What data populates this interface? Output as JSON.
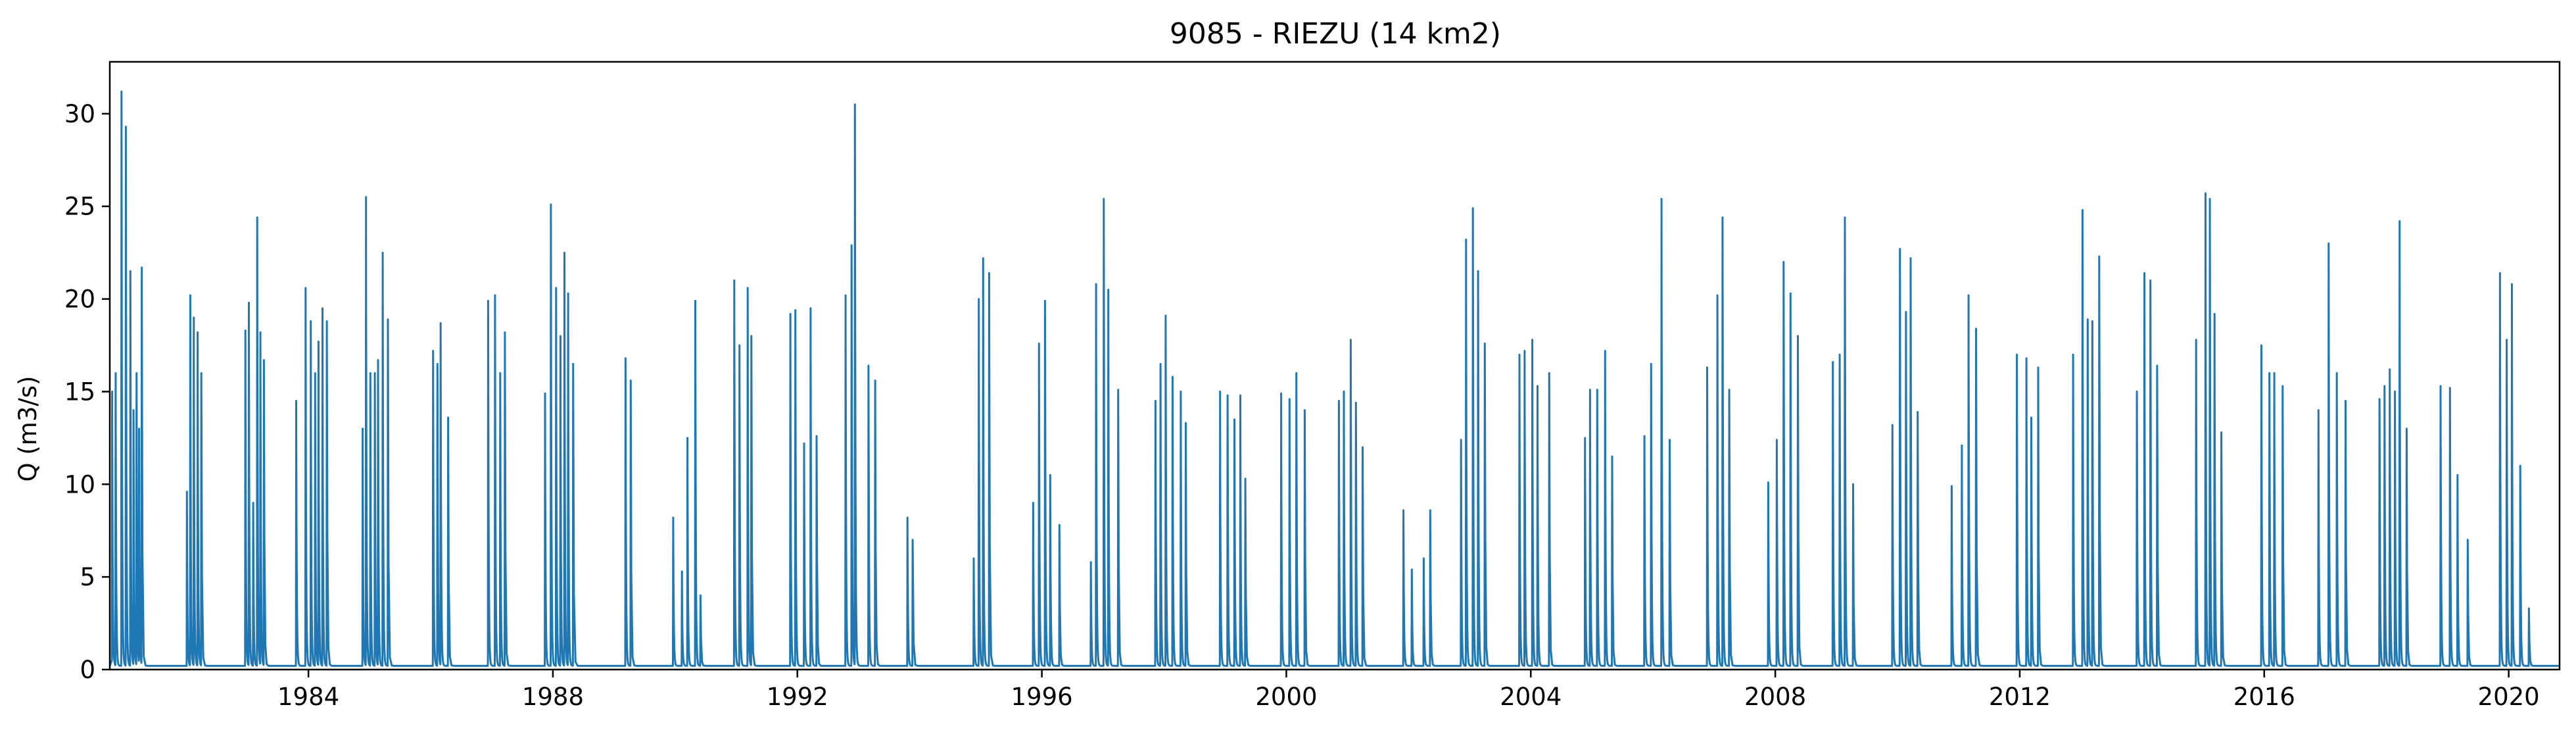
{
  "chart_data": {
    "type": "line",
    "title": "9085 - RIEZU (14 km2)",
    "xlabel": "",
    "ylabel": "Q (m3/s)",
    "x_type": "date",
    "xlim": [
      "1980-10-01",
      "2020-10-31"
    ],
    "ylim": [
      0,
      32.8
    ],
    "x_ticks": [
      "1984",
      "1988",
      "1992",
      "1996",
      "2000",
      "2004",
      "2008",
      "2012",
      "2016",
      "2020"
    ],
    "y_ticks": [
      "0",
      "5",
      "10",
      "15",
      "20",
      "25",
      "30"
    ],
    "y_tick_values": [
      0,
      5,
      10,
      15,
      20,
      25,
      30
    ],
    "grid": false,
    "legend": "none",
    "series_color": "#1f77b4",
    "baseflow": 0.2,
    "series": [
      {
        "peaks": [
          [
            "1980-10-15",
            15.0
          ],
          [
            "1980-11-05",
            16.0
          ],
          [
            "1980-12-10",
            31.2
          ],
          [
            "1981-01-05",
            29.3
          ],
          [
            "1981-02-01",
            21.5
          ],
          [
            "1981-02-20",
            14.0
          ],
          [
            "1981-03-10",
            16.0
          ],
          [
            "1981-03-25",
            13.0
          ],
          [
            "1981-04-10",
            21.7
          ],
          [
            "1982-01-05",
            9.6
          ],
          [
            "1982-01-25",
            20.2
          ],
          [
            "1982-02-15",
            19.0
          ],
          [
            "1982-03-10",
            18.2
          ],
          [
            "1982-04-01",
            16.0
          ],
          [
            "1982-12-20",
            18.3
          ],
          [
            "1983-01-10",
            19.8
          ],
          [
            "1983-02-05",
            9.0
          ],
          [
            "1983-03-01",
            24.4
          ],
          [
            "1983-03-20",
            18.2
          ],
          [
            "1983-04-10",
            16.7
          ],
          [
            "1983-10-20",
            14.5
          ],
          [
            "1983-12-15",
            20.6
          ],
          [
            "1984-01-15",
            18.8
          ],
          [
            "1984-02-10",
            16.0
          ],
          [
            "1984-03-01",
            17.7
          ],
          [
            "1984-03-25",
            19.5
          ],
          [
            "1984-04-20",
            18.8
          ],
          [
            "1984-11-20",
            13.0
          ],
          [
            "1984-12-10",
            25.5
          ],
          [
            "1985-01-05",
            16.0
          ],
          [
            "1985-02-01",
            16.0
          ],
          [
            "1985-02-20",
            16.7
          ],
          [
            "1985-03-20",
            22.5
          ],
          [
            "1985-04-20",
            18.9
          ],
          [
            "1986-01-15",
            17.2
          ],
          [
            "1986-02-10",
            16.5
          ],
          [
            "1986-03-01",
            18.7
          ],
          [
            "1986-04-15",
            13.6
          ],
          [
            "1986-12-10",
            19.9
          ],
          [
            "1987-01-20",
            20.2
          ],
          [
            "1987-02-20",
            16.0
          ],
          [
            "1987-03-20",
            18.2
          ],
          [
            "1987-11-15",
            14.9
          ],
          [
            "1987-12-20",
            25.1
          ],
          [
            "1988-01-20",
            20.6
          ],
          [
            "1988-02-15",
            18.0
          ],
          [
            "1988-03-10",
            22.5
          ],
          [
            "1988-04-01",
            20.3
          ],
          [
            "1988-05-01",
            16.5
          ],
          [
            "1989-03-10",
            16.8
          ],
          [
            "1989-04-10",
            15.6
          ],
          [
            "1989-12-20",
            8.2
          ],
          [
            "1990-02-10",
            5.3
          ],
          [
            "1990-03-15",
            12.5
          ],
          [
            "1990-05-01",
            19.9
          ],
          [
            "1990-06-01",
            4.0
          ],
          [
            "1990-12-20",
            21.0
          ],
          [
            "1991-01-20",
            17.5
          ],
          [
            "1991-03-10",
            20.6
          ],
          [
            "1991-04-01",
            18.0
          ],
          [
            "1991-11-20",
            19.2
          ],
          [
            "1991-12-20",
            19.4
          ],
          [
            "1992-02-10",
            12.2
          ],
          [
            "1992-03-20",
            19.5
          ],
          [
            "1992-04-25",
            12.6
          ],
          [
            "1992-10-15",
            20.2
          ],
          [
            "1992-11-20",
            22.9
          ],
          [
            "1992-12-10",
            30.5
          ],
          [
            "1993-03-01",
            16.4
          ],
          [
            "1993-04-10",
            15.6
          ],
          [
            "1993-10-20",
            8.2
          ],
          [
            "1993-11-20",
            7.0
          ],
          [
            "1994-11-20",
            6.0
          ],
          [
            "1994-12-20",
            20.0
          ],
          [
            "1995-01-15",
            22.2
          ],
          [
            "1995-02-20",
            21.4
          ],
          [
            "1995-11-10",
            9.0
          ],
          [
            "1995-12-15",
            17.6
          ],
          [
            "1996-01-20",
            19.9
          ],
          [
            "1996-02-20",
            10.5
          ],
          [
            "1996-04-15",
            7.8
          ],
          [
            "1996-10-20",
            5.8
          ],
          [
            "1996-11-20",
            20.8
          ],
          [
            "1997-01-05",
            25.4
          ],
          [
            "1997-02-01",
            20.5
          ],
          [
            "1997-04-01",
            15.1
          ],
          [
            "1997-11-10",
            14.5
          ],
          [
            "1997-12-10",
            16.5
          ],
          [
            "1998-01-10",
            19.1
          ],
          [
            "1998-02-20",
            15.8
          ],
          [
            "1998-04-10",
            15.0
          ],
          [
            "1998-05-10",
            13.3
          ],
          [
            "1998-12-01",
            15.0
          ],
          [
            "1999-01-15",
            14.8
          ],
          [
            "1999-02-25",
            13.5
          ],
          [
            "1999-04-01",
            14.8
          ],
          [
            "1999-05-01",
            10.3
          ],
          [
            "1999-12-01",
            14.9
          ],
          [
            "2000-01-20",
            14.6
          ],
          [
            "2000-03-01",
            16.0
          ],
          [
            "2000-04-20",
            14.0
          ],
          [
            "2000-11-10",
            14.5
          ],
          [
            "2000-12-10",
            15.0
          ],
          [
            "2001-01-20",
            17.8
          ],
          [
            "2001-02-20",
            14.4
          ],
          [
            "2001-04-01",
            12.0
          ],
          [
            "2001-12-01",
            8.6
          ],
          [
            "2002-01-20",
            5.4
          ],
          [
            "2002-04-01",
            6.0
          ],
          [
            "2002-05-10",
            8.6
          ],
          [
            "2002-11-10",
            12.4
          ],
          [
            "2002-12-10",
            23.2
          ],
          [
            "2003-01-20",
            24.9
          ],
          [
            "2003-02-20",
            21.5
          ],
          [
            "2003-04-01",
            17.6
          ],
          [
            "2003-10-25",
            17.0
          ],
          [
            "2003-11-25",
            17.2
          ],
          [
            "2004-01-10",
            17.8
          ],
          [
            "2004-02-10",
            15.3
          ],
          [
            "2004-04-20",
            16.0
          ],
          [
            "2004-11-20",
            12.5
          ],
          [
            "2004-12-20",
            15.1
          ],
          [
            "2005-02-01",
            15.1
          ],
          [
            "2005-03-20",
            17.2
          ],
          [
            "2005-05-01",
            11.5
          ],
          [
            "2005-11-10",
            12.6
          ],
          [
            "2005-12-20",
            16.5
          ],
          [
            "2006-02-20",
            25.4
          ],
          [
            "2006-04-10",
            12.4
          ],
          [
            "2006-11-20",
            16.3
          ],
          [
            "2007-01-20",
            20.2
          ],
          [
            "2007-02-20",
            24.4
          ],
          [
            "2007-04-01",
            15.1
          ],
          [
            "2007-11-20",
            10.1
          ],
          [
            "2008-01-10",
            12.4
          ],
          [
            "2008-02-20",
            22.0
          ],
          [
            "2008-04-01",
            20.3
          ],
          [
            "2008-05-15",
            18.0
          ],
          [
            "2008-12-10",
            16.6
          ],
          [
            "2009-01-20",
            17.0
          ],
          [
            "2009-02-20",
            24.4
          ],
          [
            "2009-04-10",
            10.0
          ],
          [
            "2009-12-01",
            13.2
          ],
          [
            "2010-01-15",
            22.7
          ],
          [
            "2010-02-20",
            19.3
          ],
          [
            "2010-03-20",
            22.2
          ],
          [
            "2010-05-01",
            13.9
          ],
          [
            "2010-11-20",
            9.9
          ],
          [
            "2011-01-20",
            12.1
          ],
          [
            "2011-03-01",
            20.2
          ],
          [
            "2011-04-15",
            18.4
          ],
          [
            "2011-12-15",
            17.0
          ],
          [
            "2012-02-10",
            16.8
          ],
          [
            "2012-03-10",
            13.6
          ],
          [
            "2012-04-20",
            16.3
          ],
          [
            "2012-11-15",
            17.0
          ],
          [
            "2013-01-10",
            24.8
          ],
          [
            "2013-02-10",
            18.9
          ],
          [
            "2013-03-10",
            18.8
          ],
          [
            "2013-04-20",
            22.3
          ],
          [
            "2013-12-01",
            15.0
          ],
          [
            "2014-01-15",
            21.4
          ],
          [
            "2014-02-20",
            21.0
          ],
          [
            "2014-04-01",
            16.4
          ],
          [
            "2014-11-20",
            17.8
          ],
          [
            "2015-01-15",
            25.7
          ],
          [
            "2015-02-10",
            25.4
          ],
          [
            "2015-03-10",
            19.2
          ],
          [
            "2015-04-20",
            12.8
          ],
          [
            "2015-12-15",
            17.5
          ],
          [
            "2016-02-01",
            16.0
          ],
          [
            "2016-03-01",
            16.0
          ],
          [
            "2016-04-20",
            15.3
          ],
          [
            "2016-11-20",
            14.0
          ],
          [
            "2017-01-20",
            23.0
          ],
          [
            "2017-03-10",
            16.0
          ],
          [
            "2017-05-01",
            14.5
          ],
          [
            "2017-11-20",
            14.6
          ],
          [
            "2017-12-20",
            15.3
          ],
          [
            "2018-01-20",
            16.2
          ],
          [
            "2018-02-20",
            15.0
          ],
          [
            "2018-03-20",
            24.2
          ],
          [
            "2018-05-01",
            13.0
          ],
          [
            "2018-11-20",
            15.3
          ],
          [
            "2019-01-15",
            15.2
          ],
          [
            "2019-03-01",
            10.5
          ],
          [
            "2019-05-01",
            7.0
          ],
          [
            "2019-11-10",
            21.4
          ],
          [
            "2019-12-20",
            17.8
          ],
          [
            "2020-01-20",
            20.8
          ],
          [
            "2020-03-10",
            11.0
          ],
          [
            "2020-05-01",
            3.3
          ]
        ]
      }
    ]
  }
}
